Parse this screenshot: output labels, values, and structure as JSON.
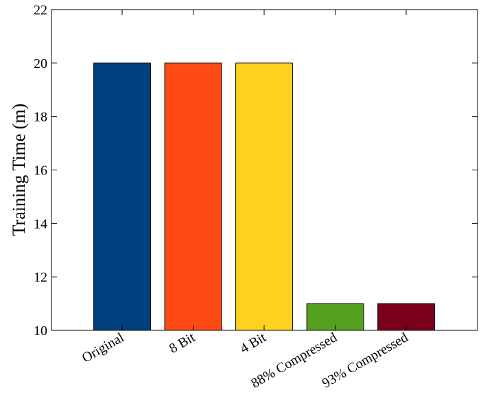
{
  "chart_data": {
    "type": "bar",
    "ylabel": "Training Time (m)",
    "categories": [
      "Original",
      "8 Bit",
      "4 Bit",
      "88% Compressed",
      "93% Compressed"
    ],
    "values": [
      20,
      20,
      20,
      11,
      11
    ],
    "colors": [
      "#00407f",
      "#ff4a14",
      "#ffd21f",
      "#56a01f",
      "#7b001c"
    ],
    "ylim": [
      10,
      22
    ],
    "yticks": [
      10,
      12,
      14,
      16,
      18,
      20,
      22
    ],
    "grid": false
  }
}
